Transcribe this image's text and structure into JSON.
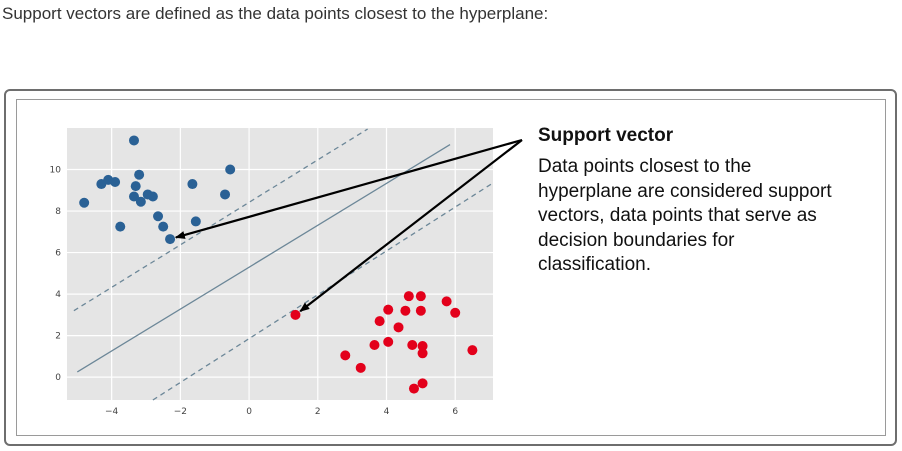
{
  "intro_text": "Support vectors are defined as the data points closest to the hyperplane:",
  "annotation": {
    "title": "Support vector",
    "text": "Data points closest to the hyperplane are considered support vectors, data points that serve as decision boundaries for classification."
  },
  "colors": {
    "blue_class": "#2a6195",
    "red_class": "#e3001b",
    "plot_bg": "#e5e5e5",
    "boundary_line": "#6c8798",
    "arrow": "#000000"
  },
  "chart_data": {
    "type": "scatter",
    "title": "",
    "xlabel": "",
    "ylabel": "",
    "xlim": [
      -5.3,
      7.1
    ],
    "ylim": [
      -1.1,
      12.0
    ],
    "xticks": [
      -4,
      -2,
      0,
      2,
      4,
      6
    ],
    "xtick_labels": [
      "−4",
      "−2",
      "0",
      "2",
      "4",
      "6"
    ],
    "yticks": [
      0,
      2,
      4,
      6,
      8,
      10
    ],
    "ytick_labels": [
      "0",
      "2",
      "4",
      "6",
      "8",
      "10"
    ],
    "grid": true,
    "series": [
      {
        "color": "#2a6195",
        "points": [
          [
            -4.8,
            8.4
          ],
          [
            -4.3,
            9.3
          ],
          [
            -4.1,
            9.5
          ],
          [
            -3.9,
            9.4
          ],
          [
            -3.75,
            7.25
          ],
          [
            -3.35,
            11.4
          ],
          [
            -3.35,
            8.7
          ],
          [
            -3.3,
            9.2
          ],
          [
            -3.2,
            9.75
          ],
          [
            -3.15,
            8.45
          ],
          [
            -2.95,
            8.8
          ],
          [
            -2.8,
            8.7
          ],
          [
            -2.65,
            7.75
          ],
          [
            -2.5,
            7.25
          ],
          [
            -2.3,
            6.65
          ],
          [
            -1.65,
            9.3
          ],
          [
            -1.55,
            7.5
          ],
          [
            -0.7,
            8.8
          ],
          [
            -0.55,
            10.0
          ]
        ]
      },
      {
        "color": "#e3001b",
        "points": [
          [
            1.35,
            3.0
          ],
          [
            2.8,
            1.05
          ],
          [
            3.25,
            0.45
          ],
          [
            3.65,
            1.55
          ],
          [
            3.8,
            2.7
          ],
          [
            4.05,
            3.25
          ],
          [
            4.05,
            1.7
          ],
          [
            4.35,
            2.4
          ],
          [
            4.55,
            3.2
          ],
          [
            4.65,
            3.9
          ],
          [
            4.75,
            1.55
          ],
          [
            4.8,
            -0.55
          ],
          [
            5.0,
            3.9
          ],
          [
            5.0,
            3.2
          ],
          [
            5.05,
            1.5
          ],
          [
            5.05,
            1.15
          ],
          [
            5.05,
            -0.3
          ],
          [
            5.75,
            3.65
          ],
          [
            6.0,
            3.1
          ],
          [
            6.5,
            1.3
          ]
        ]
      }
    ],
    "lines": [
      {
        "style": "solid",
        "points": [
          [
            -5.0,
            0.25
          ],
          [
            5.85,
            11.2
          ]
        ]
      },
      {
        "style": "dashed",
        "points": [
          [
            -5.1,
            3.2
          ],
          [
            3.45,
            11.95
          ]
        ]
      },
      {
        "style": "dashed",
        "points": [
          [
            -2.8,
            -1.1
          ],
          [
            7.05,
            9.3
          ]
        ]
      }
    ],
    "annotation_arrows": [
      {
        "from_label": "Support vector",
        "to_point": [
          -2.3,
          6.65
        ]
      },
      {
        "from_label": "Support vector",
        "to_point": [
          1.35,
          3.0
        ]
      }
    ]
  }
}
